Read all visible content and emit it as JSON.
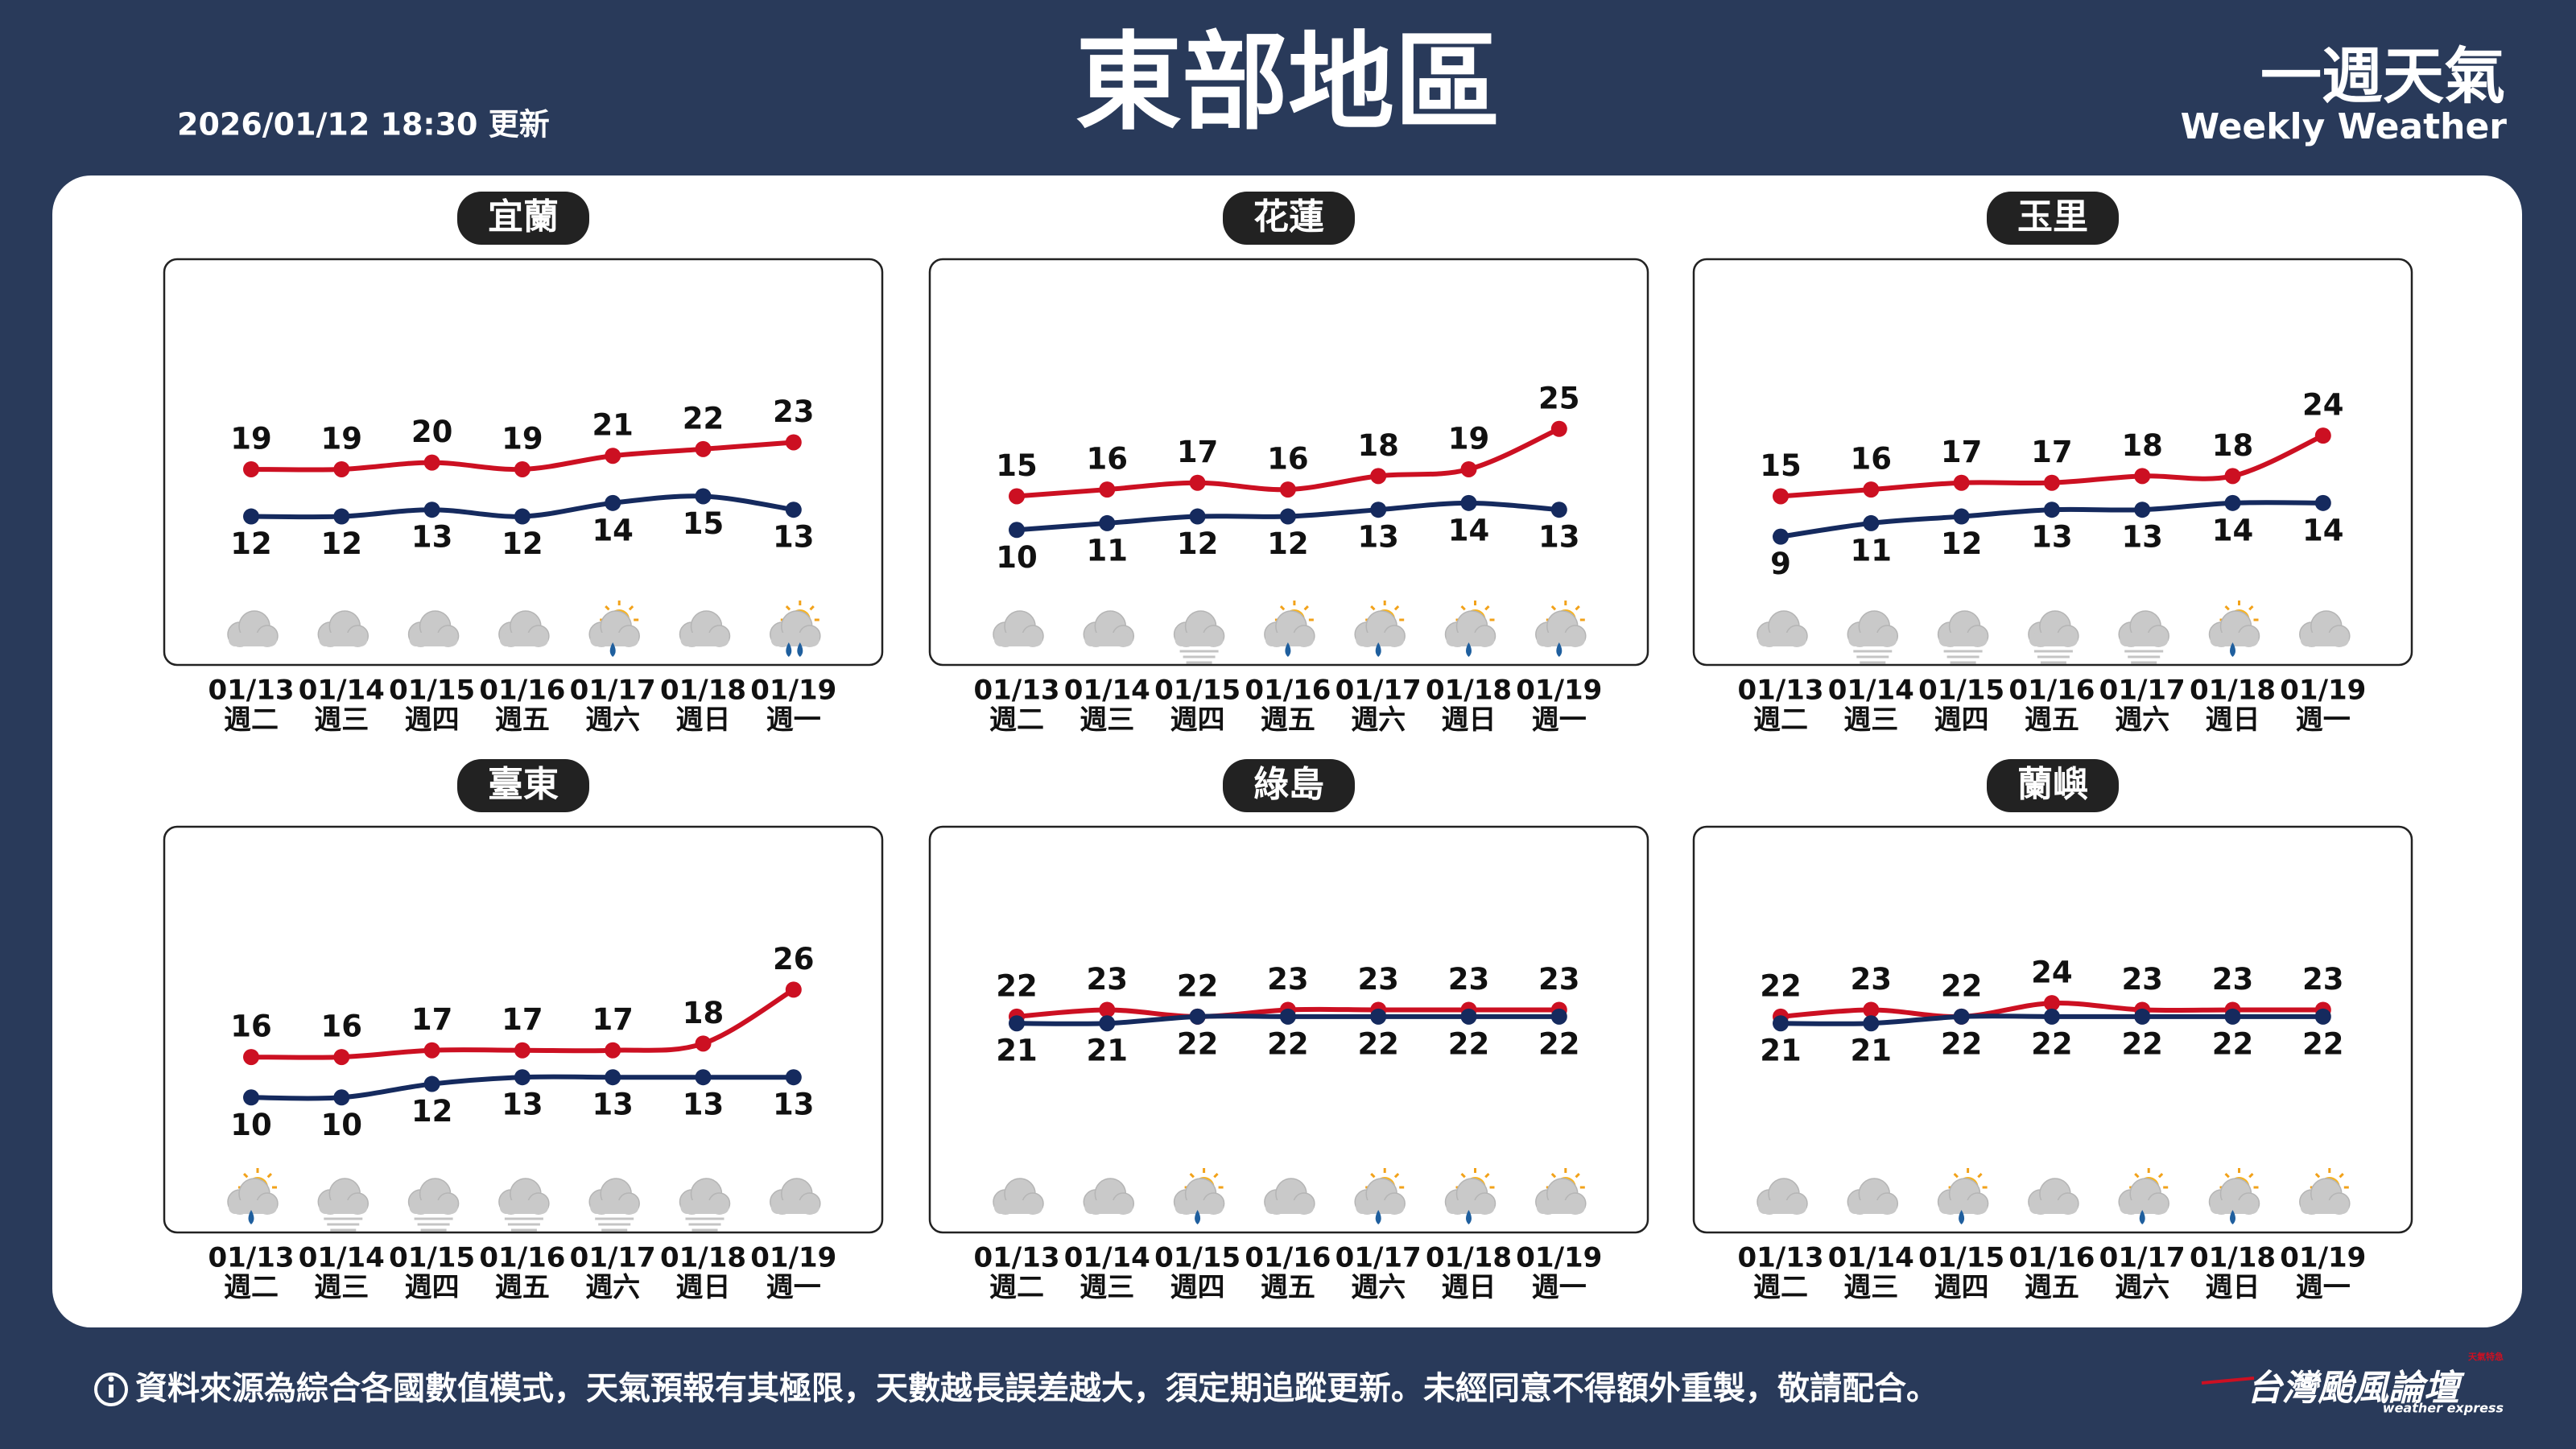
{
  "header": {
    "title": "東部地區",
    "updated": "2026/01/12 18:30 更新",
    "brand": "一週天氣",
    "brand_en": "Weekly Weather"
  },
  "chart_data": [
    {
      "type": "line",
      "title": "宜蘭",
      "categories": [
        "01/13",
        "01/14",
        "01/15",
        "01/16",
        "01/17",
        "01/18",
        "01/19"
      ],
      "weekdays": [
        "週二",
        "週三",
        "週四",
        "週五",
        "週六",
        "週日",
        "週一"
      ],
      "series": [
        {
          "color": "#cc1022",
          "values": [
            19,
            19,
            20,
            19,
            21,
            22,
            23
          ]
        },
        {
          "color": "#152a5e",
          "values": [
            12,
            12,
            13,
            12,
            14,
            15,
            13
          ]
        }
      ]
    },
    {
      "type": "line",
      "title": "花蓮",
      "categories": [
        "01/13",
        "01/14",
        "01/15",
        "01/16",
        "01/17",
        "01/18",
        "01/19"
      ],
      "weekdays": [
        "週二",
        "週三",
        "週四",
        "週五",
        "週六",
        "週日",
        "週一"
      ],
      "series": [
        {
          "color": "#cc1022",
          "values": [
            15,
            16,
            17,
            16,
            18,
            19,
            25
          ]
        },
        {
          "color": "#152a5e",
          "values": [
            10,
            11,
            12,
            12,
            13,
            14,
            13
          ]
        }
      ]
    },
    {
      "type": "line",
      "title": "玉里",
      "categories": [
        "01/13",
        "01/14",
        "01/15",
        "01/16",
        "01/17",
        "01/18",
        "01/19"
      ],
      "weekdays": [
        "週二",
        "週三",
        "週四",
        "週五",
        "週六",
        "週日",
        "週一"
      ],
      "series": [
        {
          "color": "#cc1022",
          "values": [
            15,
            16,
            17,
            17,
            18,
            18,
            24
          ]
        },
        {
          "color": "#152a5e",
          "values": [
            9,
            11,
            12,
            13,
            13,
            14,
            14
          ]
        }
      ]
    },
    {
      "type": "line",
      "title": "臺東",
      "categories": [
        "01/13",
        "01/14",
        "01/15",
        "01/16",
        "01/17",
        "01/18",
        "01/19"
      ],
      "weekdays": [
        "週二",
        "週三",
        "週四",
        "週五",
        "週六",
        "週日",
        "週一"
      ],
      "series": [
        {
          "color": "#cc1022",
          "values": [
            16,
            16,
            17,
            17,
            17,
            18,
            26
          ]
        },
        {
          "color": "#152a5e",
          "values": [
            10,
            10,
            12,
            13,
            13,
            13,
            13
          ]
        }
      ]
    },
    {
      "type": "line",
      "title": "綠島",
      "categories": [
        "01/13",
        "01/14",
        "01/15",
        "01/16",
        "01/17",
        "01/18",
        "01/19"
      ],
      "weekdays": [
        "週二",
        "週三",
        "週四",
        "週五",
        "週六",
        "週日",
        "週一"
      ],
      "series": [
        {
          "color": "#cc1022",
          "values": [
            22,
            23,
            22,
            23,
            23,
            23,
            23
          ]
        },
        {
          "color": "#152a5e",
          "values": [
            21,
            21,
            22,
            22,
            22,
            22,
            22
          ]
        }
      ]
    },
    {
      "type": "line",
      "title": "蘭嶼",
      "categories": [
        "01/13",
        "01/14",
        "01/15",
        "01/16",
        "01/17",
        "01/18",
        "01/19"
      ],
      "weekdays": [
        "週二",
        "週三",
        "週四",
        "週五",
        "週六",
        "週日",
        "週一"
      ],
      "series": [
        {
          "color": "#cc1022",
          "values": [
            22,
            23,
            22,
            24,
            23,
            23,
            23
          ]
        },
        {
          "color": "#152a5e",
          "values": [
            21,
            21,
            22,
            22,
            22,
            22,
            22
          ]
        }
      ]
    }
  ],
  "footer": {
    "note": "資料來源為綜合各國數值模式，天氣預報有其極限，天數越長誤差越大，須定期追蹤更新。未經同意不得額外重製，敬請配合。",
    "logo": "台灣颱風論壇",
    "logo_sub": "weather express",
    "logo_tag": "天氣特急"
  }
}
